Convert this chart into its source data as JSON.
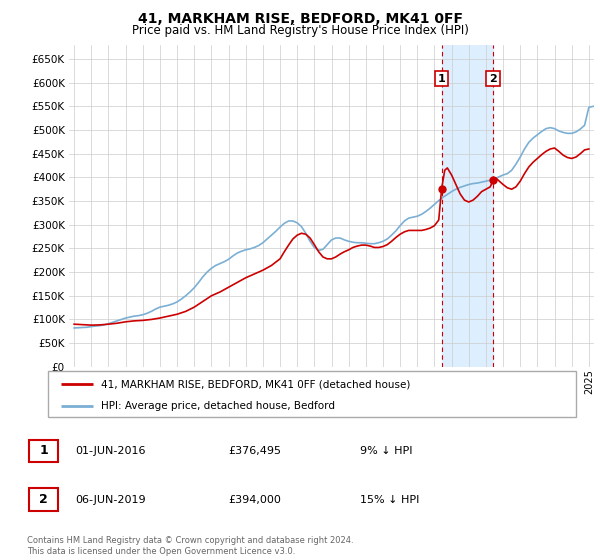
{
  "title": "41, MARKHAM RISE, BEDFORD, MK41 0FF",
  "subtitle": "Price paid vs. HM Land Registry's House Price Index (HPI)",
  "ylabel_ticks": [
    "£0",
    "£50K",
    "£100K",
    "£150K",
    "£200K",
    "£250K",
    "£300K",
    "£350K",
    "£400K",
    "£450K",
    "£500K",
    "£550K",
    "£600K",
    "£650K"
  ],
  "ytick_vals": [
    0,
    50000,
    100000,
    150000,
    200000,
    250000,
    300000,
    350000,
    400000,
    450000,
    500000,
    550000,
    600000,
    650000
  ],
  "ylim": [
    0,
    680000
  ],
  "xlim_start": 1994.7,
  "xlim_end": 2025.3,
  "hpi_color": "#7bafd4",
  "price_color": "#cc0000",
  "marker1_date": 2016.42,
  "marker1_price": 376495,
  "marker2_date": 2019.42,
  "marker2_price": 394000,
  "shade_color": "#ddeeff",
  "legend_entry1": "41, MARKHAM RISE, BEDFORD, MK41 0FF (detached house)",
  "legend_entry2": "HPI: Average price, detached house, Bedford",
  "table_row1_label": "1",
  "table_row1_date": "01-JUN-2016",
  "table_row1_price": "£376,495",
  "table_row1_hpi": "9% ↓ HPI",
  "table_row2_label": "2",
  "table_row2_date": "06-JUN-2019",
  "table_row2_price": "£394,000",
  "table_row2_hpi": "15% ↓ HPI",
  "footer": "Contains HM Land Registry data © Crown copyright and database right 2024.\nThis data is licensed under the Open Government Licence v3.0.",
  "hpi_data": [
    [
      1995.0,
      82000
    ],
    [
      1995.25,
      82500
    ],
    [
      1995.5,
      83000
    ],
    [
      1995.75,
      83500
    ],
    [
      1996.0,
      85000
    ],
    [
      1996.25,
      86000
    ],
    [
      1996.5,
      87000
    ],
    [
      1996.75,
      88500
    ],
    [
      1997.0,
      91000
    ],
    [
      1997.25,
      94000
    ],
    [
      1997.5,
      97000
    ],
    [
      1997.75,
      100000
    ],
    [
      1998.0,
      103000
    ],
    [
      1998.25,
      105000
    ],
    [
      1998.5,
      107000
    ],
    [
      1998.75,
      108000
    ],
    [
      1999.0,
      110000
    ],
    [
      1999.25,
      113000
    ],
    [
      1999.5,
      117000
    ],
    [
      1999.75,
      122000
    ],
    [
      2000.0,
      126000
    ],
    [
      2000.25,
      128000
    ],
    [
      2000.5,
      130000
    ],
    [
      2000.75,
      133000
    ],
    [
      2001.0,
      137000
    ],
    [
      2001.25,
      143000
    ],
    [
      2001.5,
      150000
    ],
    [
      2001.75,
      158000
    ],
    [
      2002.0,
      167000
    ],
    [
      2002.25,
      178000
    ],
    [
      2002.5,
      190000
    ],
    [
      2002.75,
      200000
    ],
    [
      2003.0,
      208000
    ],
    [
      2003.25,
      214000
    ],
    [
      2003.5,
      218000
    ],
    [
      2003.75,
      222000
    ],
    [
      2004.0,
      227000
    ],
    [
      2004.25,
      234000
    ],
    [
      2004.5,
      240000
    ],
    [
      2004.75,
      244000
    ],
    [
      2005.0,
      247000
    ],
    [
      2005.25,
      249000
    ],
    [
      2005.5,
      252000
    ],
    [
      2005.75,
      256000
    ],
    [
      2006.0,
      262000
    ],
    [
      2006.25,
      270000
    ],
    [
      2006.5,
      278000
    ],
    [
      2006.75,
      286000
    ],
    [
      2007.0,
      295000
    ],
    [
      2007.25,
      303000
    ],
    [
      2007.5,
      308000
    ],
    [
      2007.75,
      308000
    ],
    [
      2008.0,
      304000
    ],
    [
      2008.25,
      296000
    ],
    [
      2008.5,
      282000
    ],
    [
      2008.75,
      265000
    ],
    [
      2009.0,
      252000
    ],
    [
      2009.25,
      246000
    ],
    [
      2009.5,
      248000
    ],
    [
      2009.75,
      258000
    ],
    [
      2010.0,
      268000
    ],
    [
      2010.25,
      272000
    ],
    [
      2010.5,
      272000
    ],
    [
      2010.75,
      268000
    ],
    [
      2011.0,
      265000
    ],
    [
      2011.25,
      263000
    ],
    [
      2011.5,
      262000
    ],
    [
      2011.75,
      262000
    ],
    [
      2012.0,
      261000
    ],
    [
      2012.25,
      260000
    ],
    [
      2012.5,
      260000
    ],
    [
      2012.75,
      262000
    ],
    [
      2013.0,
      265000
    ],
    [
      2013.25,
      270000
    ],
    [
      2013.5,
      278000
    ],
    [
      2013.75,
      287000
    ],
    [
      2014.0,
      298000
    ],
    [
      2014.25,
      308000
    ],
    [
      2014.5,
      314000
    ],
    [
      2014.75,
      316000
    ],
    [
      2015.0,
      318000
    ],
    [
      2015.25,
      322000
    ],
    [
      2015.5,
      328000
    ],
    [
      2015.75,
      335000
    ],
    [
      2016.0,
      343000
    ],
    [
      2016.25,
      351000
    ],
    [
      2016.5,
      358000
    ],
    [
      2016.75,
      364000
    ],
    [
      2017.0,
      370000
    ],
    [
      2017.25,
      375000
    ],
    [
      2017.5,
      379000
    ],
    [
      2017.75,
      382000
    ],
    [
      2018.0,
      385000
    ],
    [
      2018.25,
      387000
    ],
    [
      2018.5,
      388000
    ],
    [
      2018.75,
      390000
    ],
    [
      2019.0,
      392000
    ],
    [
      2019.25,
      394000
    ],
    [
      2019.5,
      397000
    ],
    [
      2019.75,
      401000
    ],
    [
      2020.0,
      405000
    ],
    [
      2020.25,
      408000
    ],
    [
      2020.5,
      415000
    ],
    [
      2020.75,
      428000
    ],
    [
      2021.0,
      443000
    ],
    [
      2021.25,
      460000
    ],
    [
      2021.5,
      474000
    ],
    [
      2021.75,
      483000
    ],
    [
      2022.0,
      490000
    ],
    [
      2022.25,
      497000
    ],
    [
      2022.5,
      503000
    ],
    [
      2022.75,
      505000
    ],
    [
      2023.0,
      503000
    ],
    [
      2023.25,
      498000
    ],
    [
      2023.5,
      495000
    ],
    [
      2023.75,
      493000
    ],
    [
      2024.0,
      493000
    ],
    [
      2024.25,
      496000
    ],
    [
      2024.5,
      502000
    ],
    [
      2024.75,
      510000
    ],
    [
      2025.0,
      548000
    ],
    [
      2025.25,
      550000
    ]
  ],
  "price_data": [
    [
      1995.0,
      90000
    ],
    [
      1995.5,
      89000
    ],
    [
      1996.0,
      88000
    ],
    [
      1996.5,
      88500
    ],
    [
      1997.0,
      90000
    ],
    [
      1997.5,
      92000
    ],
    [
      1998.0,
      95000
    ],
    [
      1998.5,
      97000
    ],
    [
      1999.0,
      98000
    ],
    [
      1999.5,
      100000
    ],
    [
      2000.0,
      103000
    ],
    [
      2000.5,
      107000
    ],
    [
      2001.0,
      111000
    ],
    [
      2001.5,
      117000
    ],
    [
      2002.0,
      126000
    ],
    [
      2002.5,
      138000
    ],
    [
      2003.0,
      150000
    ],
    [
      2003.5,
      158000
    ],
    [
      2004.0,
      168000
    ],
    [
      2004.5,
      178000
    ],
    [
      2005.0,
      188000
    ],
    [
      2005.5,
      196000
    ],
    [
      2006.0,
      204000
    ],
    [
      2006.5,
      214000
    ],
    [
      2007.0,
      228000
    ],
    [
      2007.25,
      243000
    ],
    [
      2007.5,
      257000
    ],
    [
      2007.75,
      270000
    ],
    [
      2008.0,
      278000
    ],
    [
      2008.25,
      282000
    ],
    [
      2008.5,
      280000
    ],
    [
      2008.75,
      272000
    ],
    [
      2009.0,
      258000
    ],
    [
      2009.25,
      243000
    ],
    [
      2009.5,
      232000
    ],
    [
      2009.75,
      228000
    ],
    [
      2010.0,
      228000
    ],
    [
      2010.25,
      232000
    ],
    [
      2010.5,
      238000
    ],
    [
      2010.75,
      243000
    ],
    [
      2011.0,
      247000
    ],
    [
      2011.25,
      252000
    ],
    [
      2011.5,
      255000
    ],
    [
      2011.75,
      257000
    ],
    [
      2012.0,
      257000
    ],
    [
      2012.25,
      255000
    ],
    [
      2012.5,
      252000
    ],
    [
      2012.75,
      252000
    ],
    [
      2013.0,
      254000
    ],
    [
      2013.25,
      258000
    ],
    [
      2013.5,
      265000
    ],
    [
      2013.75,
      273000
    ],
    [
      2014.0,
      280000
    ],
    [
      2014.25,
      285000
    ],
    [
      2014.5,
      288000
    ],
    [
      2014.75,
      288000
    ],
    [
      2015.0,
      288000
    ],
    [
      2015.25,
      288000
    ],
    [
      2015.5,
      290000
    ],
    [
      2015.75,
      293000
    ],
    [
      2016.0,
      298000
    ],
    [
      2016.25,
      310000
    ],
    [
      2016.42,
      376495
    ],
    [
      2016.6,
      415000
    ],
    [
      2016.75,
      420000
    ],
    [
      2017.0,
      405000
    ],
    [
      2017.25,
      385000
    ],
    [
      2017.5,
      365000
    ],
    [
      2017.75,
      352000
    ],
    [
      2018.0,
      348000
    ],
    [
      2018.25,
      352000
    ],
    [
      2018.5,
      360000
    ],
    [
      2018.75,
      370000
    ],
    [
      2019.0,
      375000
    ],
    [
      2019.25,
      380000
    ],
    [
      2019.42,
      394000
    ],
    [
      2019.6,
      398000
    ],
    [
      2019.75,
      393000
    ],
    [
      2020.0,
      385000
    ],
    [
      2020.25,
      378000
    ],
    [
      2020.5,
      375000
    ],
    [
      2020.75,
      380000
    ],
    [
      2021.0,
      392000
    ],
    [
      2021.25,
      408000
    ],
    [
      2021.5,
      422000
    ],
    [
      2021.75,
      432000
    ],
    [
      2022.0,
      440000
    ],
    [
      2022.25,
      448000
    ],
    [
      2022.5,
      455000
    ],
    [
      2022.75,
      460000
    ],
    [
      2023.0,
      462000
    ],
    [
      2023.25,
      455000
    ],
    [
      2023.5,
      447000
    ],
    [
      2023.75,
      442000
    ],
    [
      2024.0,
      440000
    ],
    [
      2024.25,
      443000
    ],
    [
      2024.5,
      450000
    ],
    [
      2024.75,
      458000
    ],
    [
      2025.0,
      460000
    ]
  ]
}
